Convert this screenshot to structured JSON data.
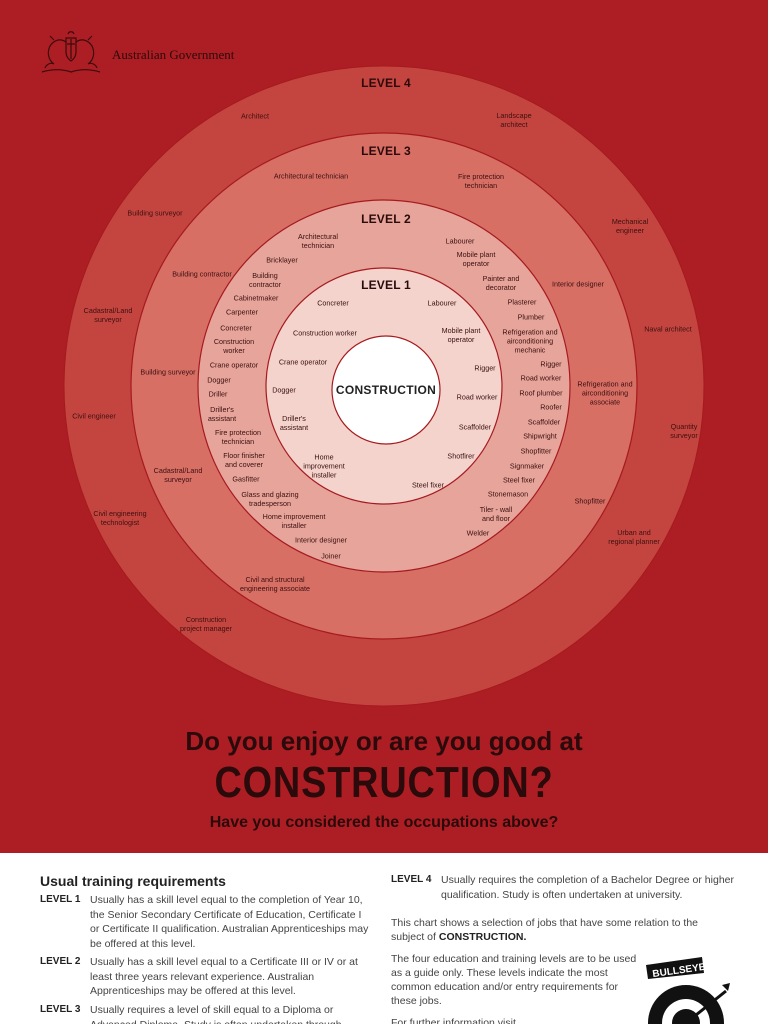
{
  "header": {
    "government": "Australian Government"
  },
  "levels": {
    "l4": "LEVEL 4",
    "l3": "LEVEL 3",
    "l2": "LEVEL 2",
    "l1": "LEVEL 1"
  },
  "center": "CONSTRUCTION",
  "occupations": {
    "level4": [
      "Architect",
      "Landscape\narchitect",
      "Building surveyor",
      "Mechanical\nengineer",
      "Cadastral/Land\nsurveyor",
      "Naval architect",
      "Civil engineer",
      "Quantity\nsurveyor",
      "Civil engineering\ntechnologist",
      "Urban and\nregional planner",
      "Construction\nproject manager"
    ],
    "level3": [
      "Architectural technician",
      "Fire protection\ntechnician",
      "Building contractor",
      "Interior designer",
      "Building surveyor",
      "Refrigeration and\nairconditioning\nassociate",
      "Cadastral/Land\nsurveyor",
      "Shopfitter",
      "Civil and structural\nengineering associate"
    ],
    "level2": [
      "Architectural\ntechnician",
      "Labourer",
      "Bricklayer",
      "Mobile plant\noperator",
      "Building\ncontractor",
      "Painter and\ndecorator",
      "Cabinetmaker",
      "Plasterer",
      "Carpenter",
      "Plumber",
      "Concreter",
      "Refrigeration and\nairconditioning\nmechanic",
      "Construction\nworker",
      "Crane operator",
      "Rigger",
      "Road worker",
      "Dogger",
      "Roof plumber",
      "Driller",
      "Roofer",
      "Driller's\nassistant",
      "Scaffolder",
      "Fire protection\ntechnician",
      "Shipwright",
      "Shopfitter",
      "Floor finisher\nand coverer",
      "Signmaker",
      "Gasfitter",
      "Steel fixer",
      "Stonemason",
      "Glass and glazing\ntradesperson",
      "Tiler - wall\nand floor",
      "Home improvement\ninstaller",
      "Welder",
      "Interior designer",
      "Joiner"
    ],
    "level1": [
      "Concreter",
      "Labourer",
      "Construction worker",
      "Mobile plant\noperator",
      "Crane operator",
      "Rigger",
      "Dogger",
      "Road worker",
      "Driller's\nassistant",
      "Scaffolder",
      "Home\nimprovement\ninstaller",
      "Shotfirer",
      "Steel fixer"
    ]
  },
  "headline": {
    "line1": "Do you enjoy or are you good at",
    "line2": "CONSTRUCTION?",
    "line3": "Have you considered the occupations above?"
  },
  "requirements": {
    "title": "Usual training requirements",
    "items": [
      {
        "tag": "LEVEL 1",
        "text": "Usually has a skill level equal to the completion of Year 10, the Senior Secondary Certificate of Education, Certificate I or Certificate II qualification. Australian Apprenticeships may be offered at this level."
      },
      {
        "tag": "LEVEL 2",
        "text": "Usually has a skill level equal to a Certificate III or IV or at least three years relevant experience. Australian Apprenticeships may be offered at this level."
      },
      {
        "tag": "LEVEL 3",
        "text": "Usually requires a level of skill equal to a Diploma or Advanced Diploma. Study is often undertaken through"
      },
      {
        "tag": "LEVEL 4",
        "text": "Usually requires the completion of a Bachelor Degree or higher qualification. Study is often undertaken at university."
      }
    ]
  },
  "notes": {
    "chart_text": "This chart shows a selection of jobs that have some relation to the subject of",
    "chart_subject": "CONSTRUCTION.",
    "guide": "The four education and training levels are to be used as a guide only. These levels indicate the most common education and/or entry requirements for these jobs.",
    "more": "For further information visit"
  },
  "logo": {
    "label": "BULLSEYE"
  },
  "colors": {
    "background": "#ac1e23",
    "ring4": "#c4453f",
    "ring3": "#d76f65",
    "ring2": "#e6a49a",
    "ring1": "#f3d3cc",
    "center": "#ffffff",
    "ring_stroke": "#a61a1f"
  }
}
